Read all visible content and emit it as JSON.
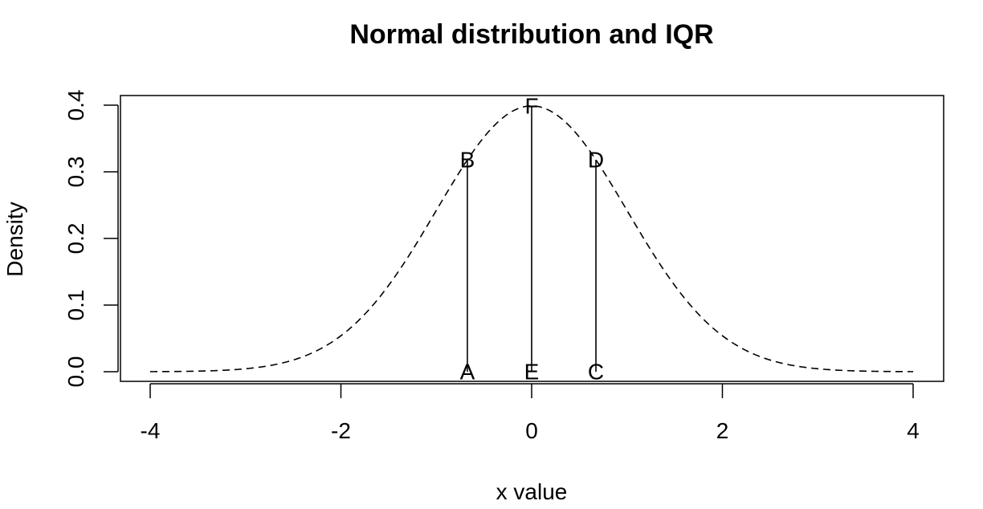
{
  "chart_data": {
    "type": "line",
    "title": "Normal distribution and IQR",
    "xlabel": "x value",
    "ylabel": "Density",
    "xlim": [
      -4,
      4
    ],
    "ylim": [
      0,
      0.4
    ],
    "x_ticks": [
      -4,
      -2,
      0,
      2,
      4
    ],
    "x_tick_labels": [
      "-4",
      "-2",
      "0",
      "2",
      "4"
    ],
    "y_ticks": [
      0.0,
      0.1,
      0.2,
      0.3,
      0.4
    ],
    "y_tick_labels": [
      "0.0",
      "0.1",
      "0.2",
      "0.3",
      "0.4"
    ],
    "grid": false,
    "legend": "none",
    "series": [
      {
        "line_style": "dashed",
        "color": "#000000",
        "curve": "standard-normal-density"
      }
    ],
    "segments": [
      {
        "x": -0.674,
        "y0": 0,
        "y1": 0.318
      },
      {
        "x": 0,
        "y0": 0,
        "y1": 0.399
      },
      {
        "x": 0.674,
        "y0": 0,
        "y1": 0.318
      }
    ],
    "annotations": [
      {
        "text": "A",
        "x": -0.674,
        "y": 0
      },
      {
        "text": "B",
        "x": -0.674,
        "y": 0.318
      },
      {
        "text": "C",
        "x": 0.674,
        "y": 0
      },
      {
        "text": "D",
        "x": 0.674,
        "y": 0.318
      },
      {
        "text": "E",
        "x": 0,
        "y": 0
      },
      {
        "text": "F",
        "x": 0,
        "y": 0.399
      }
    ]
  }
}
